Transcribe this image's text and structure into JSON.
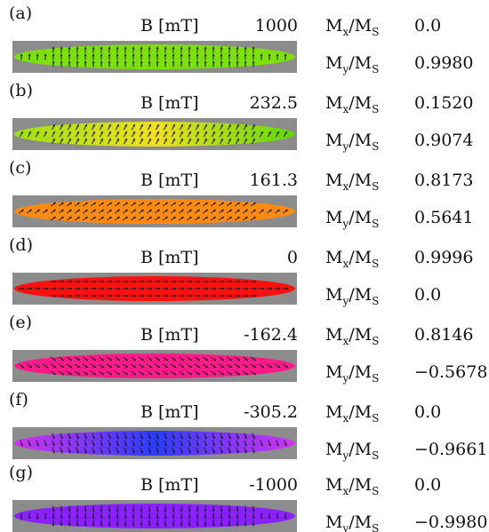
{
  "labels": {
    "b_unit": "B [mT]",
    "mx_main": "M",
    "mx_sub1": "x",
    "mx_slash": "/M",
    "mx_sub2": "S",
    "my_main": "M",
    "my_sub1": "y",
    "my_slash": "/M",
    "my_sub2": "S"
  },
  "panels": [
    {
      "letter": "(a)",
      "b": "1000",
      "mx": "0.0",
      "my": "0.9980",
      "colors": [
        "#7ce00a",
        "#7ce00a",
        "#7ce00a"
      ],
      "arrow_deg": -88
    },
    {
      "letter": "(b)",
      "b": "232.5",
      "mx": "0.1520",
      "my": "0.9074",
      "colors": [
        "#9de010",
        "#f0e020",
        "#5fd80a"
      ],
      "arrow_deg": -62
    },
    {
      "letter": "(c)",
      "b": "161.3",
      "mx": "0.8173",
      "my": "0.5641",
      "colors": [
        "#ff8a10",
        "#ff8a10",
        "#ff8a10"
      ],
      "arrow_deg": -35
    },
    {
      "letter": "(d)",
      "b": "0",
      "mx": "0.9996",
      "my": "0.0",
      "colors": [
        "#ff1010",
        "#ff1010",
        "#ff1010"
      ],
      "arrow_deg": 0
    },
    {
      "letter": "(e)",
      "b": "-162.4",
      "mx": "0.8146",
      "my": "−0.5678",
      "colors": [
        "#ff1a8a",
        "#ff1a8a",
        "#ff1a8a"
      ],
      "arrow_deg": 35
    },
    {
      "letter": "(f)",
      "b": "-305.2",
      "mx": "0.0",
      "my": "−0.9661",
      "colors": [
        "#d232f0",
        "#2a3cff",
        "#d232f0"
      ],
      "arrow_deg": 70
    },
    {
      "letter": "(g)",
      "b": "-1000",
      "mx": "0.0",
      "my": "−0.9980",
      "colors": [
        "#8a20ff",
        "#8a20ff",
        "#8a20ff"
      ],
      "arrow_deg": 88
    }
  ]
}
